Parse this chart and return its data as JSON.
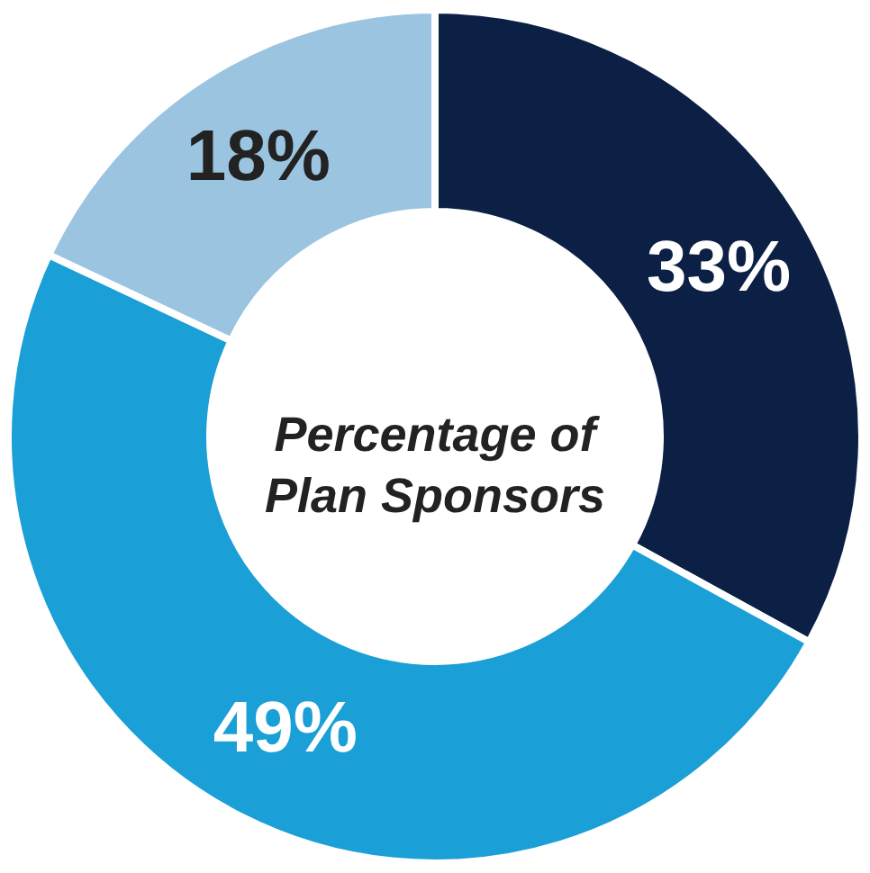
{
  "chart_data": {
    "type": "donut",
    "title": "Percentage of\nPlan Sponsors",
    "categories": [
      null,
      null,
      null
    ],
    "values": [
      33,
      49,
      18
    ],
    "colors": [
      "#0c2045",
      "#1a9fd6",
      "#9ac4e0"
    ],
    "value_labels": [
      "33%",
      "49%",
      "18%"
    ]
  }
}
